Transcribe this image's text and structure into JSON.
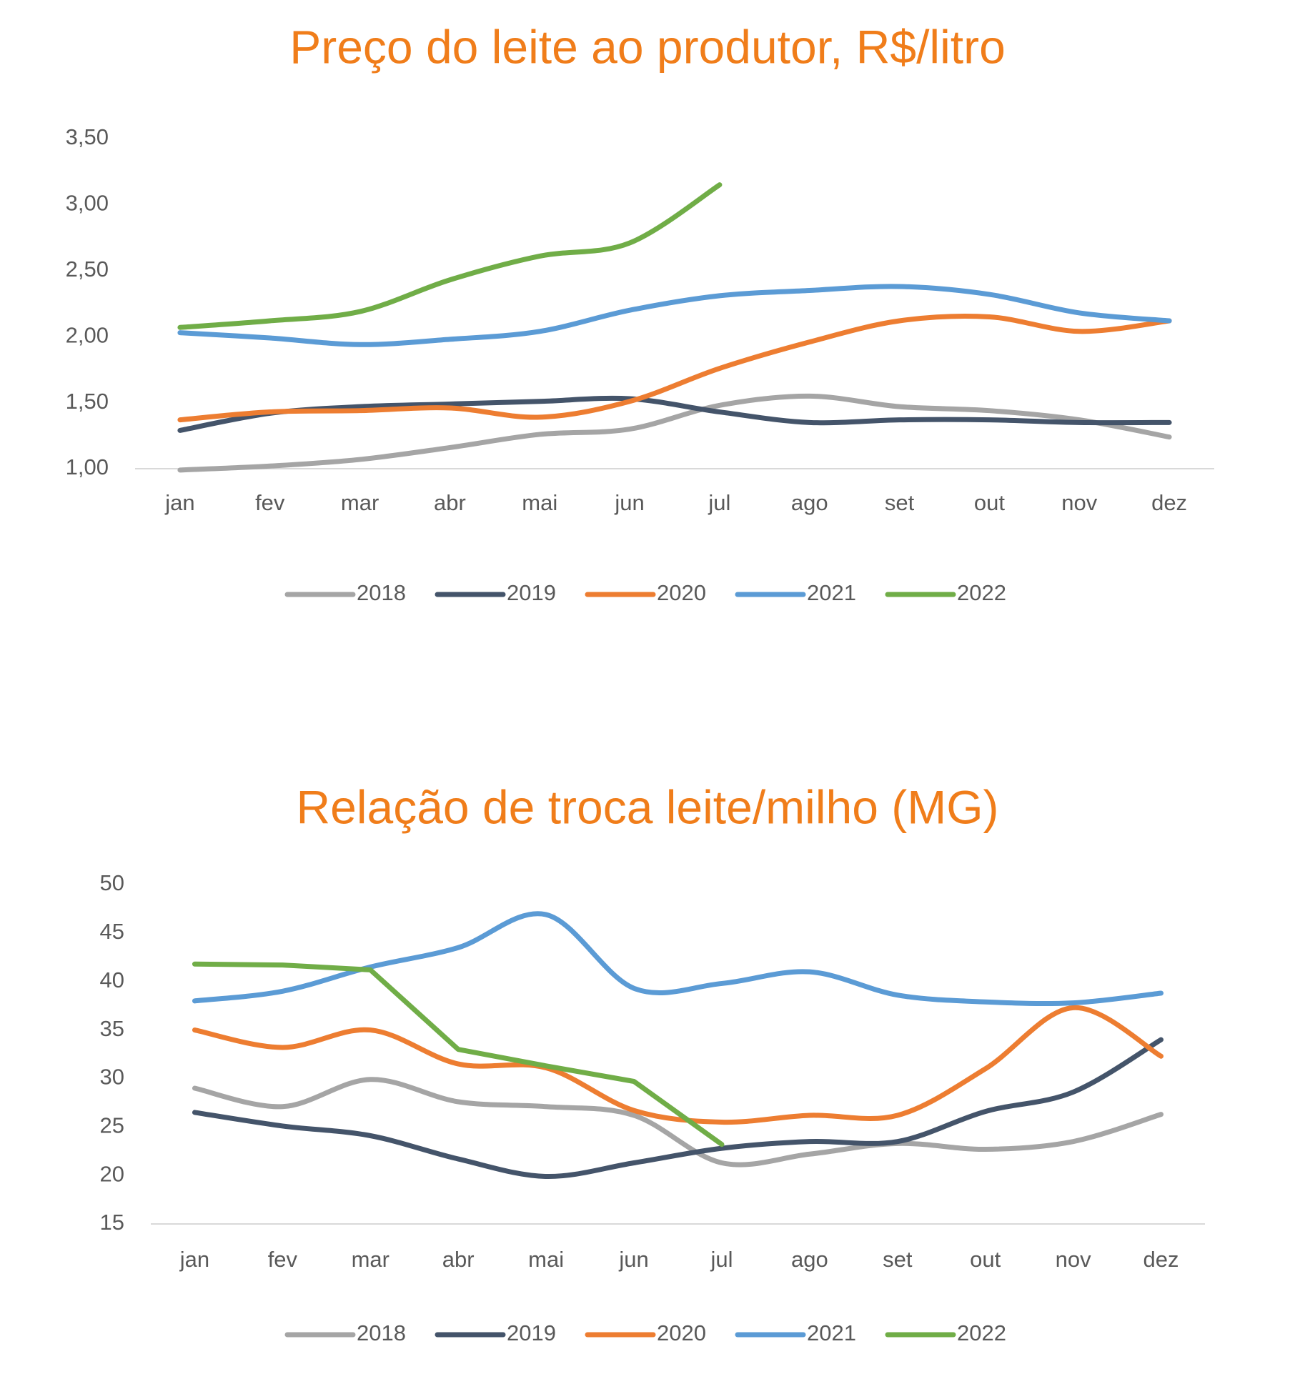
{
  "chart_data": [
    {
      "type": "line",
      "title": "Preço do leite ao produtor, R$/litro",
      "smooth": true,
      "grid": false,
      "legend": "bottom",
      "categories": [
        "jan",
        "fev",
        "mar",
        "abr",
        "mai",
        "jun",
        "jul",
        "ago",
        "set",
        "out",
        "nov",
        "dez"
      ],
      "ylim": [
        1,
        3.5
      ],
      "yticks": [
        {
          "value": 1,
          "label": "1,00"
        },
        {
          "value": 1.5,
          "label": "1,50"
        },
        {
          "value": 2,
          "label": "2,00"
        },
        {
          "value": 2.5,
          "label": "2,50"
        },
        {
          "value": 3,
          "label": "3,00"
        },
        {
          "value": 3.5,
          "label": "3,50"
        }
      ],
      "series": [
        {
          "name": "2018",
          "color": "#a5a5a5",
          "values": [
            0.99,
            1.02,
            1.07,
            1.16,
            1.26,
            1.3,
            1.48,
            1.55,
            1.47,
            1.44,
            1.37,
            1.24
          ]
        },
        {
          "name": "2019",
          "color": "#44546a",
          "values": [
            1.29,
            1.42,
            1.47,
            1.49,
            1.51,
            1.53,
            1.43,
            1.35,
            1.37,
            1.37,
            1.35,
            1.35
          ]
        },
        {
          "name": "2020",
          "color": "#ed7d31",
          "values": [
            1.37,
            1.43,
            1.44,
            1.46,
            1.39,
            1.51,
            1.76,
            1.96,
            2.12,
            2.15,
            2.04,
            2.12
          ]
        },
        {
          "name": "2021",
          "color": "#5b9bd5",
          "values": [
            2.03,
            1.99,
            1.94,
            1.98,
            2.04,
            2.2,
            2.31,
            2.35,
            2.38,
            2.32,
            2.18,
            2.12
          ]
        },
        {
          "name": "2022",
          "color": "#70ad47",
          "values": [
            2.07,
            2.12,
            2.19,
            2.43,
            2.61,
            2.71,
            3.15,
            null,
            null,
            null,
            null,
            null
          ]
        }
      ]
    },
    {
      "type": "line",
      "title": "Relação de troca leite/milho (MG)",
      "smooth": true,
      "grid": false,
      "legend": "bottom",
      "categories": [
        "jan",
        "fev",
        "mar",
        "abr",
        "mai",
        "jun",
        "jul",
        "ago",
        "set",
        "out",
        "nov",
        "dez"
      ],
      "ylim": [
        15,
        50
      ],
      "yticks": [
        15,
        20,
        25,
        30,
        35,
        40,
        45,
        50
      ],
      "series": [
        {
          "name": "2018",
          "color": "#a5a5a5",
          "values": [
            29,
            27.1,
            29.9,
            27.6,
            27.1,
            26.2,
            21.3,
            22.2,
            23.3,
            22.7,
            23.5,
            26.3
          ]
        },
        {
          "name": "2019",
          "color": "#44546a",
          "values": [
            26.5,
            25.1,
            24.1,
            21.7,
            19.9,
            21.3,
            22.8,
            23.5,
            23.5,
            26.6,
            28.6,
            34
          ]
        },
        {
          "name": "2020",
          "color": "#ed7d31",
          "values": [
            35,
            33.2,
            35,
            31.5,
            31.1,
            26.7,
            25.5,
            26.2,
            26.2,
            31,
            37.3,
            32.3
          ]
        },
        {
          "name": "2021",
          "color": "#5b9bd5",
          "values": [
            38,
            39,
            41.5,
            43.5,
            46.9,
            39.3,
            39.8,
            41,
            38.6,
            37.9,
            37.8,
            38.8
          ]
        },
        {
          "name": "2022",
          "color": "#70ad47",
          "smooth": false,
          "values": [
            41.8,
            41.7,
            41.2,
            33,
            31.3,
            29.7,
            23.2,
            null,
            null,
            null,
            null,
            null
          ]
        }
      ]
    }
  ]
}
